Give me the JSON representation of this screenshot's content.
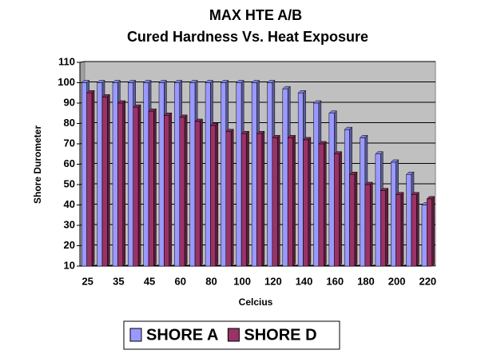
{
  "chart_data": {
    "type": "bar",
    "title": "MAX HTE A/B",
    "subtitle": "Cured Hardness Vs. Heat Exposure",
    "x_label": "Celcius",
    "y_label": "Shore Durometer",
    "categories": [
      "25",
      null,
      "35",
      null,
      "45",
      null,
      "60",
      null,
      "80",
      null,
      "100",
      null,
      "120",
      null,
      "140",
      null,
      "160",
      null,
      "180",
      null,
      "200",
      null,
      "220"
    ],
    "series": [
      {
        "name": "SHORE A",
        "color": "#9999ff",
        "values": [
          100,
          100,
          100,
          100,
          100,
          100,
          100,
          100,
          100,
          100,
          100,
          100,
          100,
          97,
          95,
          90,
          85,
          77,
          73,
          65,
          61,
          55,
          40
        ]
      },
      {
        "name": "SHORE D",
        "color": "#993366",
        "values": [
          95,
          93,
          90,
          88,
          86,
          84,
          83,
          81,
          79,
          76,
          75,
          75,
          73,
          73,
          72,
          70,
          65,
          55,
          50,
          47,
          45,
          45,
          43
        ]
      }
    ],
    "ylim": [
      10,
      110
    ],
    "yticks": [
      10,
      20,
      30,
      40,
      50,
      60,
      70,
      80,
      90,
      100,
      110
    ],
    "grid": true,
    "legend": "bottom"
  }
}
